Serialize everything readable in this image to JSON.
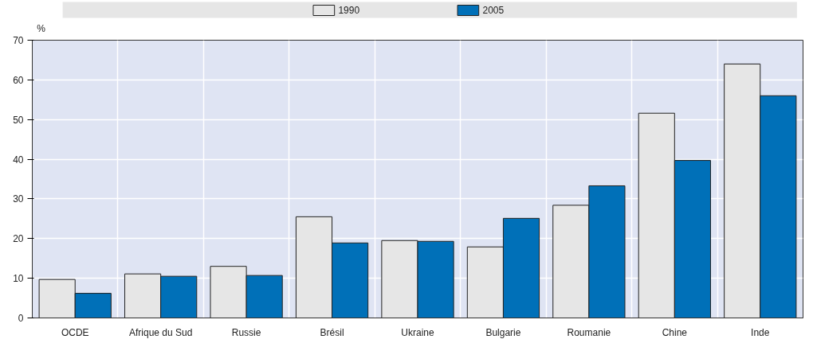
{
  "chart_data": {
    "type": "bar",
    "ylabel": "%",
    "categories": [
      "OCDE",
      "Afrique du Sud",
      "Russie",
      "Brésil",
      "Ukraine",
      "Bulgarie",
      "Roumanie",
      "Chine",
      "Inde"
    ],
    "series": [
      {
        "name": "1990",
        "color": "#e6e6e6",
        "values": [
          9.7,
          11.1,
          13.0,
          25.5,
          19.5,
          17.9,
          28.4,
          51.6,
          64.0
        ]
      },
      {
        "name": "2005",
        "color": "#0070b8",
        "values": [
          6.2,
          10.5,
          10.7,
          18.9,
          19.3,
          25.1,
          33.3,
          39.7,
          56.0
        ]
      }
    ],
    "ylim": [
      0,
      70
    ],
    "yticks": [
      0,
      10,
      20,
      30,
      40,
      50,
      60,
      70
    ],
    "grid": true,
    "legend": "top"
  }
}
